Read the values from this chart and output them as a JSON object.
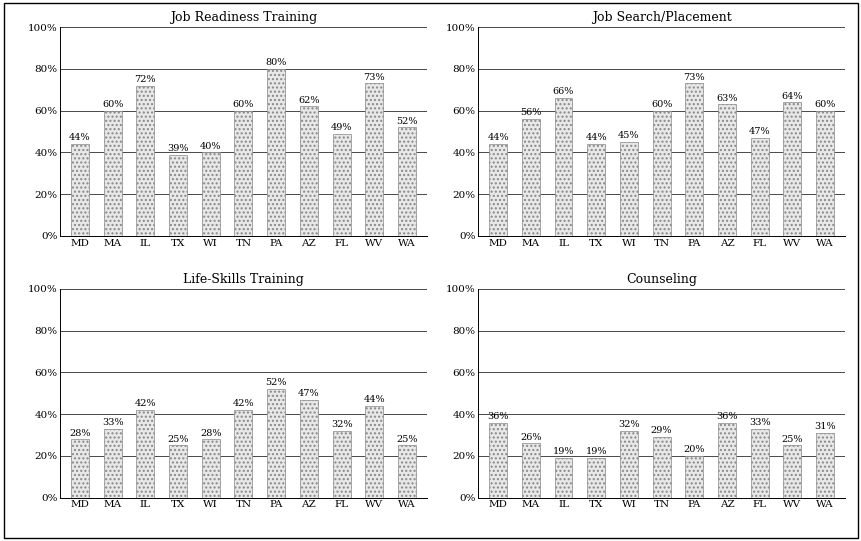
{
  "categories": [
    "MD",
    "MA",
    "IL",
    "TX",
    "WI",
    "TN",
    "PA",
    "AZ",
    "FL",
    "WV",
    "WA"
  ],
  "charts": [
    {
      "title": "Job Readiness Training",
      "values": [
        44,
        60,
        72,
        39,
        40,
        60,
        80,
        62,
        49,
        73,
        52
      ]
    },
    {
      "title": "Job Search/Placement",
      "values": [
        44,
        56,
        66,
        44,
        45,
        60,
        73,
        63,
        47,
        64,
        60
      ]
    },
    {
      "title": "Life-Skills Training",
      "values": [
        28,
        33,
        42,
        25,
        28,
        42,
        52,
        47,
        32,
        44,
        25
      ]
    },
    {
      "title": "Counseling",
      "values": [
        36,
        26,
        19,
        19,
        32,
        29,
        20,
        36,
        33,
        25,
        31
      ]
    }
  ],
  "ylim": [
    0,
    100
  ],
  "yticks": [
    0,
    20,
    40,
    60,
    80,
    100
  ],
  "yticklabels": [
    "0%",
    "20%",
    "40%",
    "60%",
    "80%",
    "100%"
  ],
  "bar_facecolor": "#e8e8e8",
  "bar_edgecolor": "#888888",
  "bar_hatch": "....",
  "title_fontsize": 9,
  "label_fontsize": 7,
  "tick_fontsize": 7.5,
  "background_color": "#ffffff"
}
